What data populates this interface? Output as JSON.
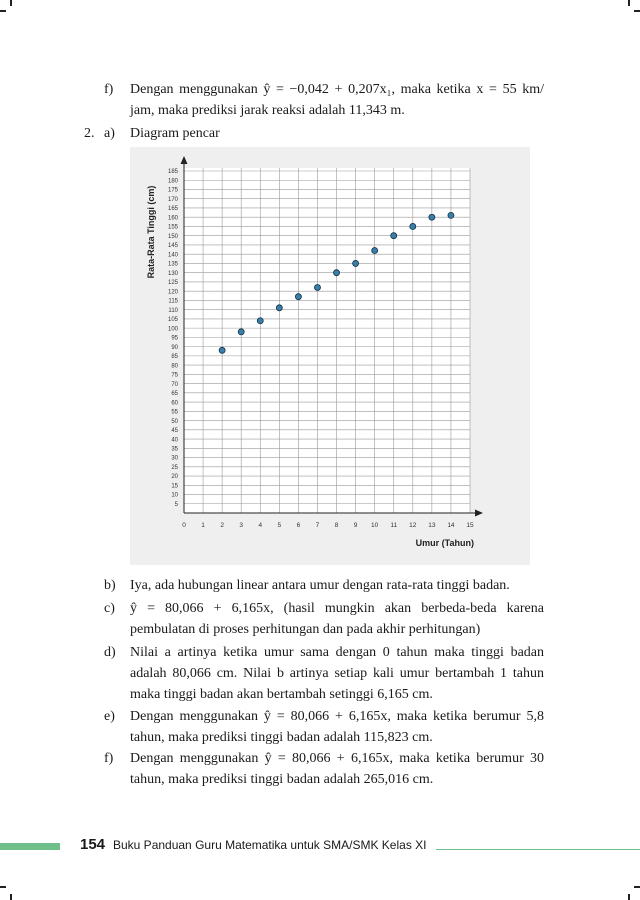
{
  "page": {
    "items_top": [
      {
        "marker": "f)",
        "text": "Dengan menggunakan ŷ = −0,042 + 0,207x₁, maka ketika x = 55 km/ jam, maka prediksi jarak reaksi adalah 11,343 m."
      }
    ],
    "section_number": "2.",
    "section_a_marker": "a)",
    "section_a_text": "Diagram pencar",
    "items_bottom": [
      {
        "marker": "b)",
        "text": "Iya, ada hubungan linear antara umur dengan rata-rata tinggi badan."
      },
      {
        "marker": "c)",
        "text": "ŷ = 80,066 + 6,165x, (hasil mungkin akan berbeda-beda karena pembulatan di proses perhitungan dan pada akhir perhitungan)"
      },
      {
        "marker": "d)",
        "text": "Nilai a artinya ketika umur sama dengan 0 tahun maka tinggi badan adalah 80,066 cm. Nilai b artinya setiap kali umur bertambah 1 tahun maka tinggi badan akan bertambah setinggi 6,165 cm."
      },
      {
        "marker": "e)",
        "text": "Dengan menggunakan ŷ = 80,066 + 6,165x, maka ketika berumur 5,8 tahun, maka prediksi tinggi badan adalah 115,823 cm."
      },
      {
        "marker": "f)",
        "text": "Dengan menggunakan ŷ = 80,066 + 6,165x, maka ketika berumur 30 tahun, maka prediksi tinggi badan adalah 265,016 cm."
      }
    ]
  },
  "footer": {
    "page_number": "154",
    "title": "Buku Panduan Guru Matematika untuk SMA/SMK Kelas XI"
  },
  "colors": {
    "accent": "#6fbf8a",
    "point_fill": "#3a7fa8",
    "chart_bg": "#efefef"
  },
  "chart_data": {
    "type": "scatter",
    "xlabel": "Umur (Tahun)",
    "ylabel": "Rata-Rata Tinggi (cm)",
    "xlim": [
      0,
      15
    ],
    "ylim": [
      0,
      185
    ],
    "xticks": [
      0,
      1,
      2,
      3,
      4,
      5,
      6,
      7,
      8,
      9,
      10,
      11,
      12,
      13,
      14,
      15
    ],
    "yticks": [
      5,
      10,
      15,
      20,
      25,
      30,
      35,
      40,
      45,
      50,
      55,
      60,
      65,
      70,
      75,
      80,
      85,
      90,
      95,
      100,
      105,
      110,
      115,
      120,
      125,
      130,
      135,
      140,
      145,
      150,
      155,
      160,
      165,
      170,
      175,
      180,
      185
    ],
    "grid": true,
    "points": [
      {
        "x": 2,
        "y": 88
      },
      {
        "x": 3,
        "y": 98
      },
      {
        "x": 4,
        "y": 104
      },
      {
        "x": 5,
        "y": 111
      },
      {
        "x": 6,
        "y": 117
      },
      {
        "x": 7,
        "y": 122
      },
      {
        "x": 8,
        "y": 130
      },
      {
        "x": 9,
        "y": 135
      },
      {
        "x": 10,
        "y": 142
      },
      {
        "x": 11,
        "y": 150
      },
      {
        "x": 12,
        "y": 155
      },
      {
        "x": 13,
        "y": 160
      },
      {
        "x": 14,
        "y": 161
      }
    ]
  }
}
